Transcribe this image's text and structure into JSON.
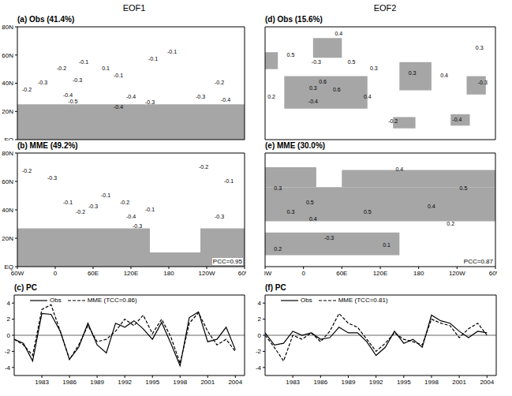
{
  "headers": [
    "EOF1",
    "EOF2"
  ],
  "chart_data": [
    {
      "type": "map",
      "title": "(a) Obs (41.4%)",
      "color": "#a6a6a6",
      "tick_labels": "y",
      "xlim": [
        -60,
        300
      ],
      "xticks": [
        {
          "value": -60,
          "label": "60W"
        },
        0,
        {
          "value": 60,
          "label": "60E"
        },
        {
          "value": 120,
          "label": "120E"
        },
        180,
        {
          "value": 240,
          "label": "120W"
        },
        {
          "value": 300,
          "label": "60W"
        }
      ],
      "ylim": [
        0,
        80
      ],
      "yticks": [
        {
          "value": 0,
          "label": "EQ"
        },
        {
          "value": 20,
          "label": "20N"
        },
        {
          "value": 40,
          "label": "40N"
        },
        {
          "value": 60,
          "label": "60N"
        },
        {
          "value": 80,
          "label": "80N"
        }
      ],
      "shaded": [
        {
          "x": [
            -60,
            300
          ],
          "y": [
            0,
            25
          ]
        }
      ],
      "contour_labels": [
        {
          "lon": -45,
          "lat": 35,
          "value": -0.2
        },
        {
          "lon": -20,
          "lat": 40,
          "value": -0.3
        },
        {
          "lon": 10,
          "lat": 50,
          "value": -0.2
        },
        {
          "lon": 35,
          "lat": 42,
          "value": -0.3
        },
        {
          "lon": 45,
          "lat": 55,
          "value": -0.1
        },
        {
          "lon": 80,
          "lat": 50,
          "value": 0.1
        },
        {
          "lon": 100,
          "lat": 45,
          "value": -0.1
        },
        {
          "lon": 155,
          "lat": 57,
          "value": -0.1
        },
        {
          "lon": 185,
          "lat": 62,
          "value": -0.1
        },
        {
          "lon": 260,
          "lat": 40,
          "value": -0.2
        },
        {
          "lon": 230,
          "lat": 30,
          "value": -0.3
        },
        {
          "lon": 270,
          "lat": 28,
          "value": -0.4
        },
        {
          "lon": 120,
          "lat": 30,
          "value": -0.4
        },
        {
          "lon": 20,
          "lat": 31,
          "value": -0.4
        },
        {
          "lon": 28,
          "lat": 27,
          "value": -0.5
        },
        {
          "lon": 150,
          "lat": 26,
          "value": -0.3
        },
        {
          "lon": 100,
          "lat": 23,
          "value": -0.4
        }
      ]
    },
    {
      "type": "map",
      "title": "(b) MME (49.2%)",
      "color": "#a6a6a6",
      "annotation": "PCC=0.95",
      "xlim": [
        -60,
        300
      ],
      "xticks": [
        {
          "value": -60,
          "label": "60W"
        },
        0,
        {
          "value": 60,
          "label": "60E"
        },
        {
          "value": 120,
          "label": "120E"
        },
        180,
        {
          "value": 240,
          "label": "120W"
        },
        {
          "value": 300,
          "label": "60W"
        }
      ],
      "ylim": [
        0,
        80
      ],
      "yticks": [
        {
          "value": 0,
          "label": "EQ"
        },
        {
          "value": 20,
          "label": "20N"
        },
        {
          "value": 40,
          "label": "40N"
        },
        {
          "value": 60,
          "label": "60N"
        },
        {
          "value": 80,
          "label": "80N"
        }
      ],
      "shaded": [
        {
          "x": [
            -60,
            150
          ],
          "y": [
            0,
            27
          ]
        },
        {
          "x": [
            150,
            230
          ],
          "y": [
            0,
            10
          ]
        },
        {
          "x": [
            230,
            300
          ],
          "y": [
            0,
            27
          ]
        }
      ],
      "contour_labels": [
        {
          "lon": -45,
          "lat": 67,
          "value": -0.2
        },
        {
          "lon": -5,
          "lat": 62,
          "value": -0.3
        },
        {
          "lon": 20,
          "lat": 45,
          "value": -0.1
        },
        {
          "lon": 40,
          "lat": 38,
          "value": -0.2
        },
        {
          "lon": 60,
          "lat": 42,
          "value": -0.3
        },
        {
          "lon": 80,
          "lat": 50,
          "value": -0.1
        },
        {
          "lon": 110,
          "lat": 45,
          "value": -0.2
        },
        {
          "lon": 120,
          "lat": 35,
          "value": -0.4
        },
        {
          "lon": 130,
          "lat": 28,
          "value": -0.3
        },
        {
          "lon": 150,
          "lat": 40,
          "value": -0.1
        },
        {
          "lon": 235,
          "lat": 70,
          "value": -0.2
        },
        {
          "lon": 260,
          "lat": 35,
          "value": -0.3
        },
        {
          "lon": 275,
          "lat": 60,
          "value": -0.1
        }
      ]
    },
    {
      "type": "line",
      "title": "(c) PC",
      "xlim": [
        1980,
        2005
      ],
      "xticks": [
        1983,
        1986,
        1989,
        1992,
        1995,
        1998,
        2001,
        2004
      ],
      "ylim": [
        -5,
        5
      ],
      "yticks": [
        -4,
        -2,
        0,
        2,
        4
      ],
      "x": [
        1980,
        1981,
        1982,
        1983,
        1984,
        1985,
        1986,
        1987,
        1988,
        1989,
        1990,
        1991,
        1992,
        1993,
        1994,
        1995,
        1996,
        1997,
        1998,
        1999,
        2000,
        2001,
        2002,
        2003,
        2004
      ],
      "series": [
        {
          "name": "Obs",
          "color": "#000000",
          "line_style": "solid",
          "values": [
            -0.5,
            -1.0,
            -3.2,
            2.7,
            2.6,
            0.5,
            -3.0,
            -1.5,
            1.5,
            -1.2,
            -2.2,
            1.5,
            1.0,
            1.8,
            0.8,
            -0.5,
            1.6,
            -1.0,
            -3.8,
            2.2,
            2.9,
            -0.8,
            -0.5,
            1.0,
            -1.8
          ]
        },
        {
          "name": "MME (TCC=0.86)",
          "color": "#000000",
          "line_style": "dashed",
          "values": [
            -0.5,
            -1.2,
            -2.5,
            3.2,
            3.8,
            0.5,
            -3.0,
            -1.2,
            1.2,
            -0.8,
            -0.5,
            0.5,
            2.0,
            1.2,
            2.5,
            0.2,
            2.0,
            -0.2,
            -3.5,
            1.5,
            2.8,
            0.5,
            -1.2,
            -0.5,
            -2.0
          ]
        }
      ]
    },
    {
      "type": "map",
      "title": "(d) Obs (15.6%)",
      "color": "#a6a6a6",
      "tick_labels": false,
      "xlim": [
        -60,
        300
      ],
      "xticks": [
        {
          "value": -60,
          "label": "60W"
        },
        0,
        {
          "value": 60,
          "label": "60E"
        },
        {
          "value": 120,
          "label": "120E"
        },
        180,
        {
          "value": 240,
          "label": "120W"
        },
        {
          "value": 300,
          "label": "60W"
        }
      ],
      "ylim": [
        0,
        80
      ],
      "yticks": [
        {
          "value": 0,
          "label": "EQ"
        },
        {
          "value": 20,
          "label": "20N"
        },
        {
          "value": 40,
          "label": "40N"
        },
        {
          "value": 60,
          "label": "60N"
        },
        {
          "value": 80,
          "label": "80N"
        }
      ],
      "shaded": [
        {
          "x": [
            -30,
            100
          ],
          "y": [
            22,
            45
          ]
        },
        {
          "x": [
            15,
            60
          ],
          "y": [
            58,
            72
          ]
        },
        {
          "x": [
            -60,
            -40
          ],
          "y": [
            50,
            62
          ]
        },
        {
          "x": [
            150,
            200
          ],
          "y": [
            35,
            55
          ]
        },
        {
          "x": [
            255,
            285
          ],
          "y": [
            32,
            45
          ]
        },
        {
          "x": [
            140,
            175
          ],
          "y": [
            8,
            16
          ]
        },
        {
          "x": [
            230,
            260
          ],
          "y": [
            10,
            18
          ]
        }
      ],
      "contour_labels": [
        {
          "lon": -20,
          "lat": 60,
          "value": 0.5
        },
        {
          "lon": 20,
          "lat": 55,
          "value": -0.3
        },
        {
          "lon": 55,
          "lat": 75,
          "value": 0.4
        },
        {
          "lon": 75,
          "lat": 55,
          "value": 0.5
        },
        {
          "lon": 30,
          "lat": 41,
          "value": 0.6
        },
        {
          "lon": 52,
          "lat": 35,
          "value": 0.6
        },
        {
          "lon": 15,
          "lat": 36,
          "value": 0.3
        },
        {
          "lon": 110,
          "lat": 50,
          "value": 0.3
        },
        {
          "lon": 100,
          "lat": 30,
          "value": 0.4
        },
        {
          "lon": 170,
          "lat": 47,
          "value": 0.3
        },
        {
          "lon": 220,
          "lat": 45,
          "value": 0.4
        },
        {
          "lon": 275,
          "lat": 65,
          "value": 0.3
        },
        {
          "lon": 280,
          "lat": 40,
          "value": -0.3
        },
        {
          "lon": 15,
          "lat": 27,
          "value": -0.4
        },
        {
          "lon": 140,
          "lat": 13,
          "value": -0.2
        },
        {
          "lon": -50,
          "lat": 30,
          "value": 0.2
        },
        {
          "lon": 240,
          "lat": 14,
          "value": -0.4
        }
      ]
    },
    {
      "type": "map",
      "title": "(e) MME (30.0%)",
      "color": "#a6a6a6",
      "tick_labels": "x",
      "annotation": "PCC=0.87",
      "xlim": [
        -60,
        300
      ],
      "xticks": [
        {
          "value": -60,
          "label": "60W"
        },
        0,
        {
          "value": 60,
          "label": "60E"
        },
        {
          "value": 120,
          "label": "120E"
        },
        180,
        {
          "value": 240,
          "label": "120W"
        },
        {
          "value": 300,
          "label": "60W"
        }
      ],
      "ylim": [
        0,
        80
      ],
      "yticks": [
        {
          "value": 0,
          "label": "EQ"
        },
        {
          "value": 20,
          "label": "20N"
        },
        {
          "value": 40,
          "label": "40N"
        },
        {
          "value": 60,
          "label": "60N"
        },
        {
          "value": 80,
          "label": "80N"
        }
      ],
      "shaded": [
        {
          "x": [
            -60,
            300
          ],
          "y": [
            32,
            56
          ]
        },
        {
          "x": [
            -60,
            20
          ],
          "y": [
            56,
            70
          ]
        },
        {
          "x": [
            60,
            300
          ],
          "y": [
            56,
            68
          ]
        },
        {
          "x": [
            -60,
            150
          ],
          "y": [
            8,
            24
          ]
        }
      ],
      "contour_labels": [
        {
          "lon": 150,
          "lat": 68,
          "value": 0.4
        },
        {
          "lon": -40,
          "lat": 55,
          "value": 0.3
        },
        {
          "lon": 10,
          "lat": 45,
          "value": 0.5
        },
        {
          "lon": -20,
          "lat": 38,
          "value": 0.3
        },
        {
          "lon": 15,
          "lat": 33,
          "value": 0.4
        },
        {
          "lon": 100,
          "lat": 38,
          "value": 0.5
        },
        {
          "lon": 250,
          "lat": 55,
          "value": 0.5
        },
        {
          "lon": 200,
          "lat": 42,
          "value": 0.4
        },
        {
          "lon": 230,
          "lat": 30,
          "value": 0.2
        },
        {
          "lon": -40,
          "lat": 12,
          "value": 0.2
        },
        {
          "lon": 130,
          "lat": 15,
          "value": 0.1
        },
        {
          "lon": 40,
          "lat": 20,
          "value": -0.3
        }
      ]
    },
    {
      "type": "line",
      "title": "(f) PC",
      "xlim": [
        1980,
        2005
      ],
      "xticks": [
        1983,
        1986,
        1989,
        1992,
        1995,
        1998,
        2001,
        2004
      ],
      "ylim": [
        -5,
        5
      ],
      "yticks": [
        -4,
        -2,
        0,
        2,
        4
      ],
      "x": [
        1980,
        1981,
        1982,
        1983,
        1984,
        1985,
        1986,
        1987,
        1988,
        1989,
        1990,
        1991,
        1992,
        1993,
        1994,
        1995,
        1996,
        1997,
        1998,
        1999,
        2000,
        2001,
        2002,
        2003,
        2004
      ],
      "series": [
        {
          "name": "Obs",
          "color": "#000000",
          "line_style": "solid",
          "values": [
            0.3,
            -1.2,
            -1.0,
            0.5,
            0.0,
            0.3,
            -0.5,
            -0.3,
            1.0,
            0.3,
            0.3,
            -0.8,
            -2.5,
            -1.5,
            0.5,
            -1.0,
            -0.5,
            -1.5,
            2.5,
            1.8,
            1.5,
            0.5,
            -0.3,
            0.5,
            0.3
          ]
        },
        {
          "name": "MME (TCC=0.81)",
          "color": "#000000",
          "line_style": "dashed",
          "values": [
            0.0,
            -1.5,
            -3.2,
            0.0,
            -0.5,
            0.3,
            -0.8,
            0.5,
            2.7,
            1.5,
            1.0,
            -0.5,
            -2.0,
            -1.0,
            0.3,
            -0.5,
            -0.8,
            -1.2,
            2.0,
            1.5,
            1.2,
            -0.3,
            0.8,
            1.5,
            0.0
          ]
        }
      ]
    }
  ]
}
